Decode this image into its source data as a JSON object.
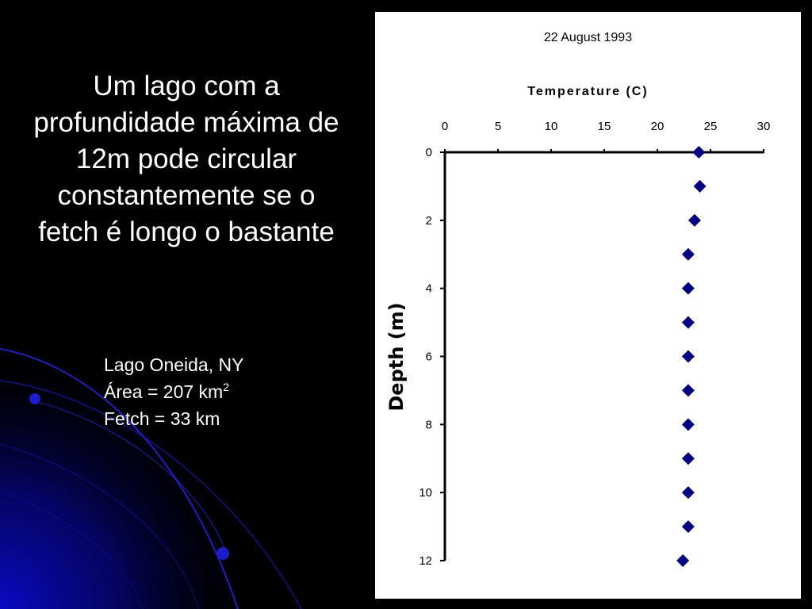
{
  "slide": {
    "title_lines": [
      "Um lago com a",
      "profundidade máxima de",
      "12m pode circular",
      "constantemente se o",
      "fetch é longo o bastante"
    ],
    "info": {
      "name": "Lago Oneida, NY",
      "area_prefix": "Área = 207 km",
      "area_superscript": "2",
      "fetch": "Fetch = 33 km"
    }
  },
  "colors": {
    "background": "#000000",
    "marker": "#000080",
    "accent_blue": "#1a1adb"
  },
  "chart_data": {
    "type": "scatter",
    "title": "22 August 1993",
    "xlabel": "Temperature (C)",
    "ylabel": "Depth (m)",
    "x_axis_position": "top",
    "y_axis_inverted": true,
    "xlim": [
      0,
      30
    ],
    "ylim": [
      0,
      12
    ],
    "x_ticks": [
      "0",
      "5",
      "10",
      "15",
      "20",
      "25",
      "30"
    ],
    "y_ticks": [
      "0",
      "2",
      "4",
      "6",
      "8",
      "10",
      "12"
    ],
    "grid": false,
    "legend": "none",
    "marker": "diamond",
    "points": [
      {
        "temperature": 23.9,
        "depth": 0
      },
      {
        "temperature": 24.0,
        "depth": 1
      },
      {
        "temperature": 23.5,
        "depth": 2
      },
      {
        "temperature": 22.9,
        "depth": 3
      },
      {
        "temperature": 22.9,
        "depth": 4
      },
      {
        "temperature": 22.9,
        "depth": 5
      },
      {
        "temperature": 22.9,
        "depth": 6
      },
      {
        "temperature": 22.9,
        "depth": 7
      },
      {
        "temperature": 22.9,
        "depth": 8
      },
      {
        "temperature": 22.9,
        "depth": 9
      },
      {
        "temperature": 22.9,
        "depth": 10
      },
      {
        "temperature": 22.9,
        "depth": 11
      },
      {
        "temperature": 22.4,
        "depth": 12
      }
    ]
  }
}
